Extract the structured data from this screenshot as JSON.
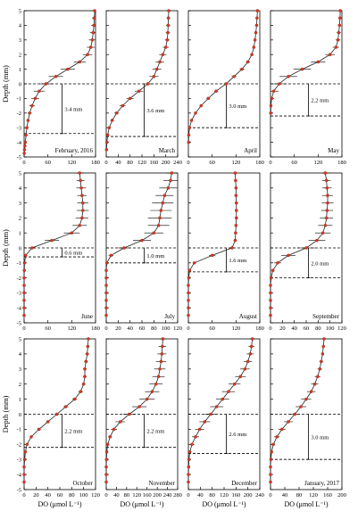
{
  "colors": {
    "axis": "#000000",
    "line": "#222222",
    "point": "#d9381e",
    "errorbar": "#000000",
    "reference_line": "#000000"
  },
  "chart_data": [
    {
      "type": "line",
      "month_label": "February, 2016",
      "thickness_label": "3.4 mm",
      "ylabel": "Depth (mm)",
      "xlabel": "",
      "xlim": [
        0,
        180
      ],
      "ylim": [
        -5,
        5
      ],
      "xticks": [
        0,
        60,
        120,
        180
      ],
      "yticks": [
        -5,
        -4,
        -3,
        -2,
        -1,
        0,
        1,
        2,
        3,
        4,
        5
      ],
      "reference_depths": [
        0,
        -3.4
      ],
      "x": [
        178,
        177,
        176,
        174,
        172,
        168,
        160,
        140,
        110,
        80,
        55,
        38,
        28,
        20,
        14,
        10,
        7,
        5,
        3,
        2,
        1,
        0.5
      ],
      "y": [
        5,
        4.5,
        4,
        3.5,
        3,
        2.5,
        2,
        1.5,
        1,
        0.5,
        0,
        -0.5,
        -1,
        -1.5,
        -2,
        -2.5,
        -3,
        -3.5,
        -4,
        -4.25,
        -4.5,
        -4.75
      ],
      "error": [
        6,
        6,
        7,
        8,
        9,
        10,
        12,
        15,
        18,
        18,
        16,
        14,
        10,
        7,
        5,
        4,
        3,
        2,
        1,
        1,
        0,
        0
      ]
    },
    {
      "type": "line",
      "month_label": "March",
      "thickness_label": "3.6 mm",
      "ylabel": "",
      "xlabel": "",
      "xlim": [
        0,
        240
      ],
      "ylim": [
        -5,
        5
      ],
      "xticks": [
        0,
        40,
        80,
        120,
        160,
        200,
        240
      ],
      "yticks": [
        -5,
        -4,
        -3,
        -2,
        -1,
        0,
        1,
        2,
        3,
        4,
        5
      ],
      "reference_depths": [
        0,
        -3.6
      ],
      "x": [
        210,
        209,
        208,
        207,
        205,
        200,
        190,
        180,
        170,
        160,
        140,
        110,
        80,
        55,
        35,
        20,
        10,
        5,
        2,
        1
      ],
      "y": [
        5,
        4.5,
        4,
        3.5,
        3,
        2.5,
        2,
        1.5,
        1,
        0.5,
        0,
        -0.5,
        -1,
        -1.5,
        -2,
        -2.5,
        -3,
        -3.5,
        -4,
        -4.5
      ],
      "error": [
        5,
        6,
        7,
        7,
        8,
        10,
        12,
        14,
        15,
        15,
        15,
        14,
        12,
        10,
        8,
        6,
        4,
        2,
        1,
        0
      ]
    },
    {
      "type": "line",
      "month_label": "April",
      "thickness_label": "3.0 mm",
      "ylabel": "",
      "xlabel": "",
      "xlim": [
        0,
        180
      ],
      "ylim": [
        -5,
        5
      ],
      "xticks": [
        0,
        60,
        120,
        180
      ],
      "yticks": [
        -5,
        -4,
        -3,
        -2,
        -1,
        0,
        1,
        2,
        3,
        4,
        5
      ],
      "reference_depths": [
        0,
        -3.0
      ],
      "x": [
        174,
        173,
        172,
        170,
        168,
        165,
        160,
        150,
        135,
        115,
        95,
        70,
        50,
        32,
        18,
        8,
        3,
        1,
        0.5
      ],
      "y": [
        5,
        4.5,
        4,
        3.5,
        3,
        2.5,
        2,
        1.5,
        1,
        0.5,
        0,
        -0.5,
        -1,
        -1.5,
        -2,
        -2.5,
        -3,
        -3.5,
        -4
      ],
      "error": [
        2,
        2,
        2,
        2,
        3,
        3,
        4,
        5,
        6,
        6,
        6,
        5,
        4,
        3,
        2,
        1,
        1,
        0,
        0
      ]
    },
    {
      "type": "line",
      "month_label": "May",
      "thickness_label": "2.2 mm",
      "ylabel": "",
      "xlabel": "",
      "xlim": [
        0,
        180
      ],
      "ylim": [
        -5,
        5
      ],
      "xticks": [
        0,
        60,
        120,
        180
      ],
      "yticks": [
        -5,
        -4,
        -3,
        -2,
        -1,
        0,
        1,
        2,
        3,
        4,
        5
      ],
      "reference_depths": [
        0,
        -2.2
      ],
      "x": [
        176,
        175,
        174,
        172,
        170,
        165,
        150,
        120,
        80,
        45,
        22,
        8,
        3,
        1,
        0.5
      ],
      "y": [
        5,
        4.5,
        4,
        3.5,
        3,
        2.5,
        2,
        1.5,
        1,
        0.5,
        0,
        -0.5,
        -1,
        -1.5,
        -2
      ],
      "error": [
        3,
        3,
        4,
        5,
        6,
        8,
        12,
        18,
        22,
        22,
        18,
        12,
        6,
        2,
        1
      ]
    },
    {
      "type": "line",
      "month_label": "June",
      "thickness_label": "0.6 mm",
      "ylabel": "Depth (mm)",
      "xlabel": "",
      "xlim": [
        0,
        180
      ],
      "ylim": [
        -5,
        5
      ],
      "xticks": [
        0,
        60,
        120,
        180
      ],
      "yticks": [
        -5,
        -4,
        -3,
        -2,
        -1,
        0,
        1,
        2,
        3,
        4,
        5
      ],
      "reference_depths": [
        0,
        -0.6
      ],
      "x": [
        140,
        142,
        144,
        146,
        148,
        148,
        146,
        140,
        120,
        70,
        20,
        4,
        1,
        0.5,
        0,
        0,
        0,
        0,
        0,
        0
      ],
      "y": [
        5,
        4.5,
        4,
        3.5,
        3,
        2.5,
        2,
        1.5,
        1,
        0.5,
        0,
        -0.5,
        -1,
        -1.5,
        -2,
        -2.5,
        -3,
        -3.5,
        -4,
        -4.5
      ],
      "error": [
        10,
        10,
        12,
        12,
        14,
        15,
        16,
        18,
        20,
        18,
        10,
        3,
        1,
        0,
        0,
        0,
        0,
        0,
        0,
        0
      ]
    },
    {
      "type": "line",
      "month_label": "July",
      "thickness_label": "1.0 mm",
      "ylabel": "",
      "xlabel": "",
      "xlim": [
        0,
        120
      ],
      "ylim": [
        -5,
        5
      ],
      "xticks": [
        0,
        20,
        40,
        60,
        80,
        100,
        120
      ],
      "yticks": [
        -5,
        -4,
        -3,
        -2,
        -1,
        0,
        1,
        2,
        3,
        4,
        5
      ],
      "reference_depths": [
        0,
        -1.0
      ],
      "x": [
        110,
        108,
        104,
        98,
        95,
        92,
        90,
        88,
        80,
        60,
        30,
        8,
        1,
        0,
        0,
        0,
        0,
        0,
        0,
        0
      ],
      "y": [
        5,
        4.5,
        4,
        3.5,
        3,
        2.5,
        2,
        1.5,
        1,
        0.5,
        0,
        -0.5,
        -1,
        -1.5,
        -2,
        -2.5,
        -3,
        -3.5,
        -4,
        -4.5
      ],
      "error": [
        10,
        12,
        15,
        15,
        18,
        18,
        20,
        18,
        16,
        15,
        10,
        4,
        1,
        0,
        0,
        0,
        0,
        0,
        0,
        0
      ]
    },
    {
      "type": "line",
      "month_label": "August",
      "thickness_label": "1.6 mm",
      "ylabel": "",
      "xlabel": "",
      "xlim": [
        0,
        180
      ],
      "ylim": [
        -5,
        5
      ],
      "xticks": [
        0,
        60,
        120,
        180
      ],
      "yticks": [
        -5,
        -4,
        -3,
        -2,
        -1,
        0,
        1,
        2,
        3,
        4,
        5
      ],
      "reference_depths": [
        0,
        -1.6
      ],
      "x": [
        118,
        119,
        120,
        120,
        121,
        121,
        121,
        120,
        119,
        118,
        110,
        60,
        15,
        3,
        1,
        0,
        0,
        0,
        0,
        0
      ],
      "y": [
        5,
        4.5,
        4,
        3.5,
        3,
        2.5,
        2,
        1.5,
        1,
        0.5,
        0,
        -0.5,
        -1,
        -1.5,
        -2,
        -2.5,
        -3,
        -3.5,
        -4,
        -4.5
      ],
      "error": [
        4,
        4,
        4,
        4,
        4,
        4,
        4,
        4,
        4,
        4,
        6,
        8,
        4,
        1,
        0,
        0,
        0,
        0,
        0,
        0
      ]
    },
    {
      "type": "line",
      "month_label": "September",
      "thickness_label": "2.0 mm",
      "ylabel": "",
      "xlabel": "",
      "xlim": [
        0,
        120
      ],
      "ylim": [
        -5,
        5
      ],
      "xticks": [
        0,
        20,
        40,
        60,
        80,
        100,
        120
      ],
      "yticks": [
        -5,
        -4,
        -3,
        -2,
        -1,
        0,
        1,
        2,
        3,
        4,
        5
      ],
      "reference_depths": [
        0,
        -2.0
      ],
      "x": [
        92,
        94,
        95,
        96,
        96,
        95,
        94,
        92,
        88,
        78,
        60,
        30,
        12,
        4,
        1,
        0,
        0,
        0,
        0,
        0
      ],
      "y": [
        5,
        4.5,
        4,
        3.5,
        3,
        2.5,
        2,
        1.5,
        1,
        0.5,
        0,
        -0.5,
        -1,
        -1.5,
        -2,
        -2.5,
        -3,
        -3.5,
        -4,
        -4.5
      ],
      "error": [
        6,
        7,
        8,
        9,
        10,
        10,
        11,
        12,
        13,
        14,
        15,
        12,
        6,
        2,
        1,
        0,
        0,
        0,
        0,
        0
      ]
    },
    {
      "type": "line",
      "month_label": "October",
      "thickness_label": "2.2 mm",
      "ylabel": "Depth (mm)",
      "xlabel": "DO (μmol L⁻¹)",
      "xlim": [
        0,
        120
      ],
      "ylim": [
        -5,
        5
      ],
      "xticks": [
        0,
        20,
        40,
        60,
        80,
        100,
        120
      ],
      "yticks": [
        -5,
        -4,
        -3,
        -2,
        -1,
        0,
        1,
        2,
        3,
        4,
        5
      ],
      "reference_depths": [
        0,
        -2.2
      ],
      "x": [
        108,
        107,
        106,
        104,
        102,
        102,
        100,
        95,
        85,
        70,
        55,
        40,
        25,
        12,
        5,
        2,
        1,
        0,
        0,
        0
      ],
      "y": [
        5,
        4.5,
        4,
        3.5,
        3,
        2.5,
        2,
        1.5,
        1,
        0.5,
        0,
        -0.5,
        -1,
        -1.5,
        -2,
        -2.5,
        -3,
        -3.5,
        -4,
        -4.5
      ],
      "error": [
        2,
        2,
        3,
        3,
        3,
        3,
        3,
        4,
        4,
        4,
        4,
        3,
        3,
        2,
        1,
        1,
        0,
        0,
        0,
        0
      ]
    },
    {
      "type": "line",
      "month_label": "November",
      "thickness_label": "2.2 mm",
      "ylabel": "",
      "xlabel": "DO (μmol L⁻¹)",
      "xlim": [
        0,
        280
      ],
      "ylim": [
        -5,
        5
      ],
      "xticks": [
        0,
        40,
        80,
        120,
        160,
        200,
        240,
        280
      ],
      "yticks": [
        -5,
        -4,
        -3,
        -2,
        -1,
        0,
        1,
        2,
        3,
        4,
        5
      ],
      "reference_depths": [
        0,
        -2.2
      ],
      "x": [
        222,
        220,
        218,
        215,
        210,
        205,
        195,
        180,
        160,
        130,
        90,
        55,
        30,
        15,
        6,
        2,
        1,
        0,
        0,
        0
      ],
      "y": [
        5,
        4.5,
        4,
        3.5,
        3,
        2.5,
        2,
        1.5,
        1,
        0.5,
        0,
        -0.5,
        -1,
        -1.5,
        -2,
        -2.5,
        -3,
        -3.5,
        -4,
        -4.5
      ],
      "error": [
        12,
        15,
        18,
        20,
        22,
        24,
        26,
        28,
        30,
        28,
        24,
        18,
        12,
        7,
        3,
        1,
        0,
        0,
        0,
        0
      ]
    },
    {
      "type": "line",
      "month_label": "December",
      "thickness_label": "2.6 mm",
      "ylabel": "",
      "xlabel": "DO (μmol L⁻¹)",
      "xlim": [
        0,
        240
      ],
      "ylim": [
        -5,
        5
      ],
      "xticks": [
        0,
        40,
        80,
        120,
        160,
        200,
        240
      ],
      "yticks": [
        -5,
        -4,
        -3,
        -2,
        -1,
        0,
        1,
        2,
        3,
        4,
        5
      ],
      "reference_depths": [
        0,
        -2.6
      ],
      "x": [
        215,
        212,
        208,
        200,
        190,
        175,
        155,
        135,
        115,
        95,
        75,
        55,
        38,
        24,
        12,
        5,
        2,
        1,
        0,
        0
      ],
      "y": [
        5,
        4.5,
        4,
        3.5,
        3,
        2.5,
        2,
        1.5,
        1,
        0.5,
        0,
        -0.5,
        -1,
        -1.5,
        -2,
        -2.5,
        -3,
        -3.5,
        -4,
        -4.5
      ],
      "error": [
        8,
        10,
        12,
        14,
        16,
        18,
        20,
        22,
        22,
        22,
        20,
        18,
        15,
        12,
        8,
        4,
        2,
        1,
        0,
        0
      ]
    },
    {
      "type": "line",
      "month_label": "January, 2017",
      "thickness_label": "3.0 mm",
      "ylabel": "",
      "xlabel": "DO (μmol L⁻¹)",
      "xlim": [
        0,
        200
      ],
      "ylim": [
        -5,
        5
      ],
      "xticks": [
        0,
        40,
        80,
        120,
        160,
        200
      ],
      "yticks": [
        -5,
        -4,
        -3,
        -2,
        -1,
        0,
        1,
        2,
        3,
        4,
        5
      ],
      "reference_depths": [
        0,
        -3.0
      ],
      "x": [
        150,
        148,
        146,
        142,
        138,
        132,
        124,
        114,
        100,
        85,
        68,
        50,
        32,
        18,
        8,
        3,
        1,
        0,
        0,
        0
      ],
      "y": [
        5,
        4.5,
        4,
        3.5,
        3,
        2.5,
        2,
        1.5,
        1,
        0.5,
        0,
        -0.5,
        -1,
        -1.5,
        -2,
        -2.5,
        -3,
        -3.5,
        -4,
        -4.5
      ],
      "error": [
        3,
        3,
        4,
        5,
        6,
        8,
        10,
        12,
        14,
        15,
        14,
        12,
        10,
        8,
        5,
        3,
        1,
        0,
        0,
        0
      ]
    }
  ]
}
